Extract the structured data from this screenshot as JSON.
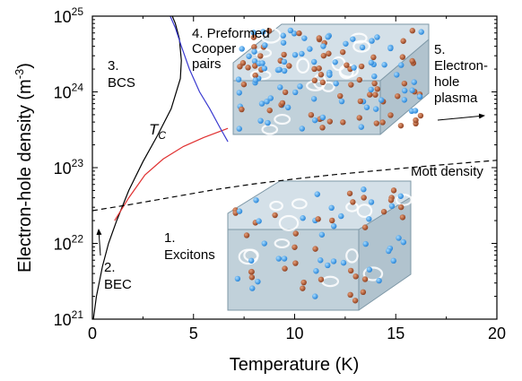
{
  "chart_data": {
    "type": "line",
    "xlabel": "Temperature (K)",
    "ylabel": "Electron-hole density (m",
    "ylabel_sup": "-3",
    "ylabel_close": ")",
    "x_axis": {
      "scale": "linear",
      "range": [
        0,
        20
      ],
      "ticks": [
        0,
        5,
        10,
        15,
        20
      ],
      "tick_labels": [
        "0",
        "5",
        "10",
        "15",
        "20"
      ]
    },
    "y_axis": {
      "scale": "log",
      "range": [
        1e+21,
        1e+25
      ],
      "ticks": [
        1e+21,
        1e+22,
        1e+23,
        1e+24,
        1e+25
      ],
      "tick_base": "10",
      "tick_exponents": [
        "21",
        "22",
        "23",
        "24",
        "25"
      ]
    },
    "grid": false,
    "colors": {
      "tc": "#000000",
      "red": "#e03030",
      "blue": "#3a3ad0",
      "mott": "#000000",
      "electron": "#2f8fe0",
      "hole": "#b0502a",
      "box": "#a9c0cc"
    },
    "series": [
      {
        "name": "Tc",
        "color": "#000000",
        "style": "solid",
        "points": [
          [
            0.05,
            1e+21
          ],
          [
            0.2,
            2e+21
          ],
          [
            0.5,
            5e+21
          ],
          [
            0.8,
            1e+22
          ],
          [
            1.2,
            2e+22
          ],
          [
            1.8,
            5e+22
          ],
          [
            2.5,
            1.2e+23
          ],
          [
            3.2,
            2.6e+23
          ],
          [
            3.9,
            6e+23
          ],
          [
            4.35,
            1.5e+24
          ],
          [
            4.4,
            2.6e+24
          ],
          [
            4.3,
            5e+24
          ],
          [
            4.1,
            8e+24
          ],
          [
            3.95,
            1e+25
          ]
        ]
      },
      {
        "name": "",
        "color": "#e03030",
        "style": "solid",
        "points": [
          [
            1.1,
            2e+22
          ],
          [
            1.8,
            4e+22
          ],
          [
            2.6,
            8e+22
          ],
          [
            3.5,
            1.3e+23
          ],
          [
            4.5,
            1.9e+23
          ],
          [
            5.5,
            2.5e+23
          ],
          [
            6.7,
            3.3e+23
          ]
        ]
      },
      {
        "name": "",
        "color": "#3a3ad0",
        "style": "solid",
        "points": [
          [
            3.85,
            1e+25
          ],
          [
            4.1,
            7e+24
          ],
          [
            4.4,
            4e+24
          ],
          [
            4.8,
            2e+24
          ],
          [
            5.3,
            1e+24
          ],
          [
            5.8,
            6e+23
          ],
          [
            6.3,
            3.4e+23
          ],
          [
            6.7,
            2.2e+23
          ]
        ]
      },
      {
        "name": "Mott density",
        "color": "#000000",
        "style": "dashed",
        "points": [
          [
            0,
            2.7e+22
          ],
          [
            2,
            3.3e+22
          ],
          [
            4,
            4.1e+22
          ],
          [
            6,
            5.1e+22
          ],
          [
            8,
            6.1e+22
          ],
          [
            10,
            7.1e+22
          ],
          [
            12,
            8.1e+22
          ],
          [
            14,
            9.1e+22
          ],
          [
            16,
            1.02e+23
          ],
          [
            18,
            1.13e+23
          ],
          [
            20,
            1.25e+23
          ]
        ]
      }
    ],
    "annotations": {
      "excitons": [
        "1.",
        "Excitons"
      ],
      "bec": [
        "2.",
        "BEC"
      ],
      "bcs": [
        "3.",
        "BCS"
      ],
      "cooper": [
        "4. Preformed",
        "Cooper",
        "pairs"
      ],
      "plasma": [
        "5.",
        "Electron-",
        "hole",
        "plasma"
      ],
      "tc_base": "T",
      "tc_sub": "C",
      "mott": "Mott density"
    }
  }
}
